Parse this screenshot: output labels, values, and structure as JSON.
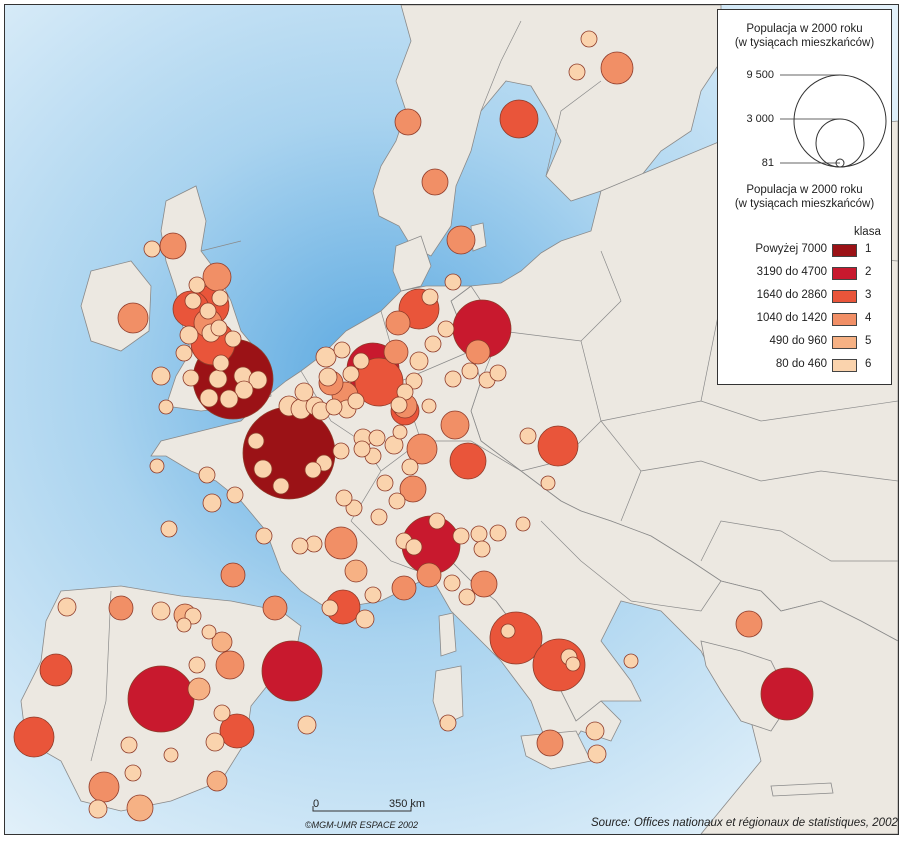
{
  "map": {
    "sea_color": "#a9d3ef",
    "land_color": "#ece8e1",
    "border_color": "#8a8a8a"
  },
  "legend": {
    "size_title_line1": "Populacja w 2000 roku",
    "size_title_line2": "(w tysiącach mieszkańców)",
    "size_values": [
      "9 500",
      "3 000",
      "81"
    ],
    "class_title_line1": "Populacja w 2000 roku",
    "class_title_line2": "(w tysiącach mieszkańców)",
    "class_header": "klasa",
    "classes": [
      {
        "range": "Powyżej 7000",
        "num": "1",
        "color": "#9b1216"
      },
      {
        "range": "3190 do 4700",
        "num": "2",
        "color": "#c8192e"
      },
      {
        "range": "1640 do 2860",
        "num": "3",
        "color": "#e9553a"
      },
      {
        "range": "1040 do 1420",
        "num": "4",
        "color": "#f18f66"
      },
      {
        "range": "490 do 960",
        "num": "5",
        "color": "#f6b184"
      },
      {
        "range": "80 do 460",
        "num": "6",
        "color": "#fad3ad"
      }
    ]
  },
  "scale": {
    "start": "0",
    "end": "350 km"
  },
  "copyright": "©MGM-UMR ESPACE 2002",
  "source": "Source: Offices nationaux et régionaux de statistiques, 2002"
}
